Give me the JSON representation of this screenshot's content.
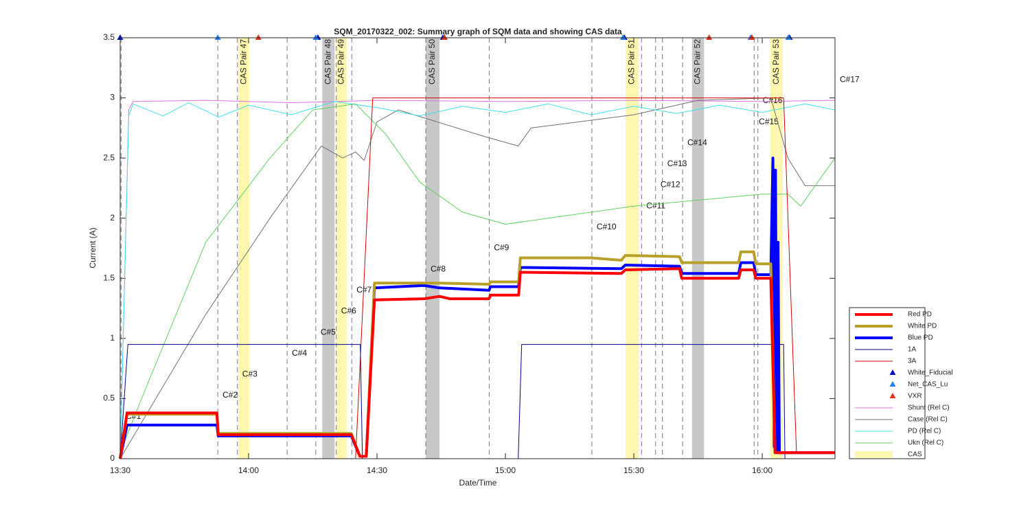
{
  "chart_data": {
    "type": "line",
    "title": "SQM_20170322_002: Summary graph of SQM data and showing CAS data",
    "x_label": "Date/Time",
    "y_label": "Current (A)",
    "xlim": [
      810,
      977
    ],
    "xticks": [
      {
        "value": 810,
        "label": "13:30"
      },
      {
        "value": 840,
        "label": "14:00"
      },
      {
        "value": 870,
        "label": "14:30"
      },
      {
        "value": 900,
        "label": "15:00"
      },
      {
        "value": 930,
        "label": "15:30"
      },
      {
        "value": 960,
        "label": "16:00"
      }
    ],
    "ylim": [
      0,
      3.5
    ],
    "yticks": [
      0,
      0.5,
      1,
      1.5,
      2,
      2.5,
      3,
      3.5
    ],
    "grid": false,
    "legend_position": "lower-right",
    "series": [
      {
        "name": "Red PD",
        "color": "#ff0000",
        "linewidth": 4,
        "x": [
          810,
          811.6,
          832.6,
          832.9,
          864,
          866,
          867.5,
          869.4,
          881,
          884.6,
          887,
          896.2,
          896.5,
          903.1,
          903.5,
          927.1,
          928,
          940.7,
          941.2,
          954.5,
          955,
          958,
          958.5,
          962,
          963,
          977
        ],
        "values": [
          0,
          0.38,
          0.38,
          0.2,
          0.2,
          0.02,
          0.02,
          1.32,
          1.33,
          1.35,
          1.33,
          1.33,
          1.36,
          1.36,
          1.55,
          1.54,
          1.57,
          1.58,
          1.5,
          1.5,
          1.57,
          1.57,
          1.5,
          1.5,
          0.05,
          0.05
        ]
      },
      {
        "name": "White PD",
        "color": "#b8a028",
        "linewidth": 4,
        "x": [
          810,
          811.6,
          832.6,
          832.9,
          864,
          866,
          867.5,
          869.4,
          884.6,
          896.2,
          896.5,
          903.1,
          903.5,
          920,
          927.1,
          928,
          940.7,
          941.2,
          954.5,
          955,
          958,
          958.5,
          962,
          963,
          977
        ],
        "values": [
          0,
          0.37,
          0.37,
          0.21,
          0.21,
          0.02,
          0.02,
          1.46,
          1.46,
          1.45,
          1.47,
          1.47,
          1.67,
          1.67,
          1.65,
          1.69,
          1.68,
          1.63,
          1.63,
          1.72,
          1.72,
          1.62,
          1.62,
          0.05,
          0.05
        ]
      },
      {
        "name": "Blue PD",
        "color": "#0000ff",
        "linewidth": 4,
        "x": [
          810,
          811.6,
          832.6,
          832.9,
          864,
          866,
          867.5,
          869.4,
          881,
          884.6,
          896.2,
          896.5,
          903.1,
          903.5,
          927.1,
          928,
          940.7,
          941.2,
          954.5,
          955,
          958,
          958.5,
          962,
          962.5,
          962.8,
          963.1,
          963.4,
          963.7,
          964,
          977
        ],
        "values": [
          0,
          0.28,
          0.28,
          0.19,
          0.19,
          0.02,
          0.02,
          1.42,
          1.44,
          1.42,
          1.4,
          1.43,
          1.43,
          1.59,
          1.58,
          1.61,
          1.6,
          1.54,
          1.54,
          1.63,
          1.63,
          1.53,
          1.53,
          2.5,
          0.1,
          2.4,
          0.05,
          1.8,
          0.05,
          0.05
        ]
      },
      {
        "name": "1A",
        "color": "#00008b",
        "linewidth": 1,
        "x": [
          810,
          811.8,
          866.1,
          866.6,
          903,
          903.8,
          965,
          965.3,
          977
        ],
        "values": [
          0,
          0.95,
          0.95,
          0,
          0,
          0.95,
          0.95,
          0,
          0
        ]
      },
      {
        "name": "3A",
        "color": "#d00000",
        "linewidth": 1,
        "x": [
          810,
          865,
          869,
          965,
          968,
          977
        ],
        "values": [
          0,
          0,
          3,
          3,
          0.05,
          0.05
        ]
      }
    ],
    "markers": [
      {
        "name": "White_Fiducial",
        "color": "#0010c0",
        "x": [
          810,
          856.2,
          885.4,
          927.8,
          966.4
        ],
        "values": [
          3.5,
          3.5,
          3.5,
          3.5,
          3.5
        ]
      },
      {
        "name": "Net_CAS_Lu",
        "color": "#2080f0",
        "x": [
          832.8,
          855.7,
          927.5,
          957.3,
          966.1
        ],
        "values": [
          3.5,
          3.5,
          3.5,
          3.5,
          3.5
        ]
      },
      {
        "name": "VXR",
        "color": "#e83018",
        "x": [
          842.3,
          885.8,
          947.6,
          957.6
        ],
        "values": [
          3.5,
          3.5,
          3.5,
          3.5
        ]
      }
    ],
    "relative_series": [
      {
        "name": "Shunt (Rel C)",
        "color": "#e070e0",
        "linewidth": 1,
        "x": [
          810,
          812,
          813,
          830,
          850,
          870,
          900,
          930,
          960,
          977
        ],
        "values": [
          0,
          2.9,
          2.97,
          2.98,
          2.96,
          2.98,
          2.97,
          2.98,
          2.97,
          2.98
        ]
      },
      {
        "name": "Case (Rel C)",
        "color": "#707070",
        "linewidth": 1,
        "x": [
          810,
          820,
          830,
          845,
          857,
          862,
          865,
          867,
          870,
          875,
          895,
          903,
          906,
          930,
          945,
          962,
          966,
          970,
          977
        ],
        "values": [
          0,
          0.6,
          1.2,
          2.0,
          2.6,
          2.5,
          2.55,
          2.48,
          2.8,
          2.9,
          2.68,
          2.6,
          2.75,
          2.86,
          2.98,
          3.0,
          2.5,
          2.27,
          2.27
        ]
      },
      {
        "name": "PD (Rel C)",
        "color": "#40e0e8",
        "linewidth": 1,
        "x": [
          810,
          812,
          813,
          820,
          826,
          833,
          840,
          850,
          860,
          870,
          880,
          890,
          900,
          910,
          920,
          930,
          940,
          950,
          960,
          970,
          977
        ],
        "values": [
          0,
          2.85,
          2.95,
          2.85,
          2.96,
          2.84,
          2.94,
          2.86,
          2.97,
          2.92,
          2.85,
          2.93,
          2.88,
          2.95,
          2.86,
          2.93,
          2.87,
          2.94,
          2.88,
          2.95,
          2.9
        ]
      },
      {
        "name": "Ukn (Rel C)",
        "color": "#60d060",
        "linewidth": 1,
        "x": [
          810,
          815,
          830,
          845,
          855,
          865,
          872,
          880,
          890,
          900,
          910,
          930,
          960,
          966,
          969,
          977
        ],
        "values": [
          0.05,
          0.5,
          1.8,
          2.5,
          2.9,
          2.95,
          2.7,
          2.3,
          2.05,
          1.95,
          2.0,
          2.1,
          2.2,
          2.2,
          2.1,
          2.5
        ]
      }
    ],
    "cas_name": "CAS",
    "cas_bands": [
      {
        "label": "CAS Pair 47",
        "color": "#fff6b0",
        "start": 837.6,
        "end": 840.2
      },
      {
        "label": "CAS Pair 48",
        "color": "#c8c8c8",
        "start": 857.2,
        "end": 860.1
      },
      {
        "label": "CAS Pair 49",
        "color": "#fff6b0",
        "start": 860.5,
        "end": 862.9
      },
      {
        "label": "CAS Pair 50",
        "color": "#c8c8c8",
        "start": 881.4,
        "end": 884.6
      },
      {
        "label": "CAS Pair 51",
        "color": "#fff6b0",
        "start": 928.1,
        "end": 931.1
      },
      {
        "label": "CAS Pair 52",
        "color": "#c8c8c8",
        "start": 943.6,
        "end": 946.4
      },
      {
        "label": "CAS Pair 53",
        "color": "#fff6b0",
        "start": 961.9,
        "end": 964.8
      }
    ],
    "annotations": [
      {
        "label": "C#1",
        "x": 810.2,
        "y": 0.35
      },
      {
        "label": "C#2",
        "x": 832.8,
        "y": 0.525
      },
      {
        "label": "C#3",
        "x": 837.4,
        "y": 0.7
      },
      {
        "label": "C#4",
        "x": 849.0,
        "y": 0.875
      },
      {
        "label": "C#5",
        "x": 855.7,
        "y": 1.05
      },
      {
        "label": "C#6",
        "x": 860.5,
        "y": 1.225
      },
      {
        "label": "C#7",
        "x": 864.1,
        "y": 1.4
      },
      {
        "label": "C#8",
        "x": 881.4,
        "y": 1.575
      },
      {
        "label": "C#9",
        "x": 896.2,
        "y": 1.75
      },
      {
        "label": "C#10",
        "x": 920.2,
        "y": 1.925
      },
      {
        "label": "C#11",
        "x": 931.8,
        "y": 2.1
      },
      {
        "label": "C#12",
        "x": 935.1,
        "y": 2.275
      },
      {
        "label": "C#13",
        "x": 936.7,
        "y": 2.45
      },
      {
        "label": "C#14",
        "x": 941.4,
        "y": 2.625
      },
      {
        "label": "C#15",
        "x": 958.1,
        "y": 2.8
      },
      {
        "label": "C#16",
        "x": 959.0,
        "y": 2.975
      },
      {
        "label": "C#17",
        "x": 977.0,
        "y": 3.15
      }
    ]
  }
}
